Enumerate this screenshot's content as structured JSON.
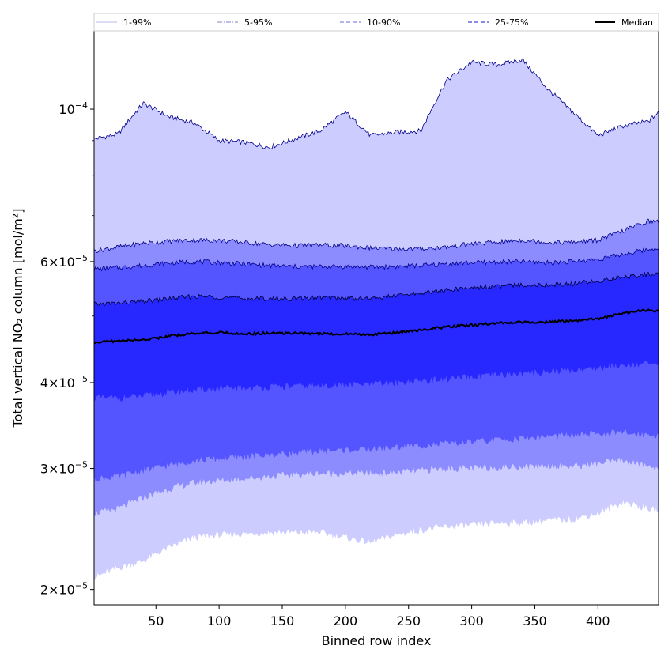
{
  "chart_data": {
    "type": "area",
    "title": "",
    "xlabel": "Binned row index",
    "ylabel": "Total vertical NO₂ column [mol/m²]",
    "yscale": "log",
    "xlim": [
      1,
      448
    ],
    "ylim": [
      1.9e-05,
      0.00013
    ],
    "xticks": [
      50,
      100,
      150,
      200,
      250,
      300,
      350,
      400
    ],
    "yticks": [
      {
        "value": 2e-05,
        "mantissa": "2",
        "exponent": "−5",
        "label": "2×10⁻⁵"
      },
      {
        "value": 3e-05,
        "mantissa": "3",
        "exponent": "−5",
        "label": "3×10⁻⁵"
      },
      {
        "value": 4e-05,
        "mantissa": "4",
        "exponent": "−5",
        "label": "4×10⁻⁵"
      },
      {
        "value": 6e-05,
        "mantissa": "6",
        "exponent": "−5",
        "label": "6×10⁻⁵"
      },
      {
        "value": 0.0001,
        "mantissa": "",
        "exponent": "−4",
        "label": "10⁻⁴"
      }
    ],
    "minor_yticks": [
      5e-05,
      7e-05,
      8e-05,
      9e-05
    ],
    "x": [
      1,
      20,
      40,
      60,
      80,
      100,
      120,
      140,
      160,
      180,
      200,
      220,
      240,
      260,
      280,
      300,
      320,
      340,
      360,
      380,
      400,
      420,
      440,
      448
    ],
    "bands": [
      {
        "name": "1-99%",
        "color": "#ccccff",
        "line_color": "#00008b",
        "lower": [
          2.08e-05,
          2.15e-05,
          2.2e-05,
          2.3e-05,
          2.38e-05,
          2.4e-05,
          2.41e-05,
          2.42e-05,
          2.42e-05,
          2.42e-05,
          2.38e-05,
          2.34e-05,
          2.4e-05,
          2.44e-05,
          2.47e-05,
          2.48e-05,
          2.5e-05,
          2.5e-05,
          2.52e-05,
          2.53e-05,
          2.58e-05,
          2.68e-05,
          2.62e-05,
          2.6e-05
        ],
        "upper": [
          9.05e-05,
          9.2e-05,
          0.000102,
          9.75e-05,
          9.55e-05,
          9e-05,
          8.95e-05,
          8.8e-05,
          9.05e-05,
          9.3e-05,
          9.9e-05,
          9.15e-05,
          9.25e-05,
          9.3e-05,
          0.00011,
          0.000117,
          0.000116,
          0.000118,
          0.000107,
          9.9e-05,
          9.15e-05,
          9.45e-05,
          9.6e-05,
          9.9e-05
        ]
      },
      {
        "name": "5-95%",
        "color": "#8c8cff",
        "line_color": "#00008b",
        "lower": [
          2.58e-05,
          2.62e-05,
          2.72e-05,
          2.8e-05,
          2.86e-05,
          2.88e-05,
          2.9e-05,
          2.92e-05,
          2.94e-05,
          2.95e-05,
          2.95e-05,
          2.95e-05,
          2.96e-05,
          2.98e-05,
          3e-05,
          3e-05,
          3.01e-05,
          3.02e-05,
          3.03e-05,
          3.02e-05,
          3.05e-05,
          3.08e-05,
          3.02e-05,
          3e-05
        ],
        "upper": [
          6.22e-05,
          6.3e-05,
          6.38e-05,
          6.42e-05,
          6.45e-05,
          6.44e-05,
          6.4e-05,
          6.35e-05,
          6.33e-05,
          6.34e-05,
          6.33e-05,
          6.28e-05,
          6.26e-05,
          6.26e-05,
          6.3e-05,
          6.37e-05,
          6.4e-05,
          6.45e-05,
          6.4e-05,
          6.4e-05,
          6.45e-05,
          6.65e-05,
          6.88e-05,
          6.85e-05
        ]
      },
      {
        "name": "10-90%",
        "color": "#5555ff",
        "line_color": "#00008b",
        "lower": [
          2.9e-05,
          2.92e-05,
          2.98e-05,
          3.03e-05,
          3.08e-05,
          3.1e-05,
          3.12e-05,
          3.14e-05,
          3.16e-05,
          3.18e-05,
          3.19e-05,
          3.2e-05,
          3.22e-05,
          3.24e-05,
          3.26e-05,
          3.28e-05,
          3.3e-05,
          3.32e-05,
          3.34e-05,
          3.35e-05,
          3.37e-05,
          3.38e-05,
          3.36e-05,
          3.35e-05
        ],
        "upper": [
          5.85e-05,
          5.88e-05,
          5.92e-05,
          5.97e-05,
          6e-05,
          5.98e-05,
          5.95e-05,
          5.92e-05,
          5.9e-05,
          5.9e-05,
          5.9e-05,
          5.89e-05,
          5.9e-05,
          5.92e-05,
          5.95e-05,
          5.98e-05,
          5.99e-05,
          6e-05,
          5.98e-05,
          6e-05,
          6.05e-05,
          6.15e-05,
          6.25e-05,
          6.28e-05
        ]
      },
      {
        "name": "25-75%",
        "color": "#2727ff",
        "line_color": "#000033",
        "lower": [
          3.8e-05,
          3.8e-05,
          3.82e-05,
          3.87e-05,
          3.9e-05,
          3.92e-05,
          3.93e-05,
          3.94e-05,
          3.95e-05,
          3.96e-05,
          3.97e-05,
          3.98e-05,
          4e-05,
          4.02e-05,
          4.05e-05,
          4.07e-05,
          4.1e-05,
          4.12e-05,
          4.15e-05,
          4.17e-05,
          4.2e-05,
          4.25e-05,
          4.26e-05,
          4.24e-05
        ],
        "upper": [
          5.2e-05,
          5.22e-05,
          5.25e-05,
          5.3e-05,
          5.34e-05,
          5.33e-05,
          5.3e-05,
          5.3e-05,
          5.3e-05,
          5.32e-05,
          5.31e-05,
          5.3e-05,
          5.35e-05,
          5.4e-05,
          5.45e-05,
          5.5e-05,
          5.52e-05,
          5.55e-05,
          5.55e-05,
          5.57e-05,
          5.62e-05,
          5.7e-05,
          5.75e-05,
          5.75e-05
        ]
      }
    ],
    "median": {
      "name": "Median",
      "color": "#000000",
      "values": [
        4.58e-05,
        4.6e-05,
        4.62e-05,
        4.67e-05,
        4.72e-05,
        4.73e-05,
        4.71e-05,
        4.72e-05,
        4.72e-05,
        4.71e-05,
        4.71e-05,
        4.7e-05,
        4.73e-05,
        4.77e-05,
        4.82e-05,
        4.85e-05,
        4.88e-05,
        4.9e-05,
        4.9e-05,
        4.92e-05,
        4.95e-05,
        5.05e-05,
        5.1e-05,
        5.08e-05
      ]
    },
    "legend": {
      "position": "top",
      "entries": [
        {
          "label": "1-99%",
          "color": "#c8c8ee",
          "style": "solid"
        },
        {
          "label": "5-95%",
          "color": "#9a9ad8",
          "style": "dashdot"
        },
        {
          "label": "10-90%",
          "color": "#8888ee",
          "style": "dashed"
        },
        {
          "label": "25-75%",
          "color": "#4444cc",
          "style": "dashed"
        },
        {
          "label": "Median",
          "color": "#000000",
          "style": "solid"
        }
      ]
    }
  }
}
